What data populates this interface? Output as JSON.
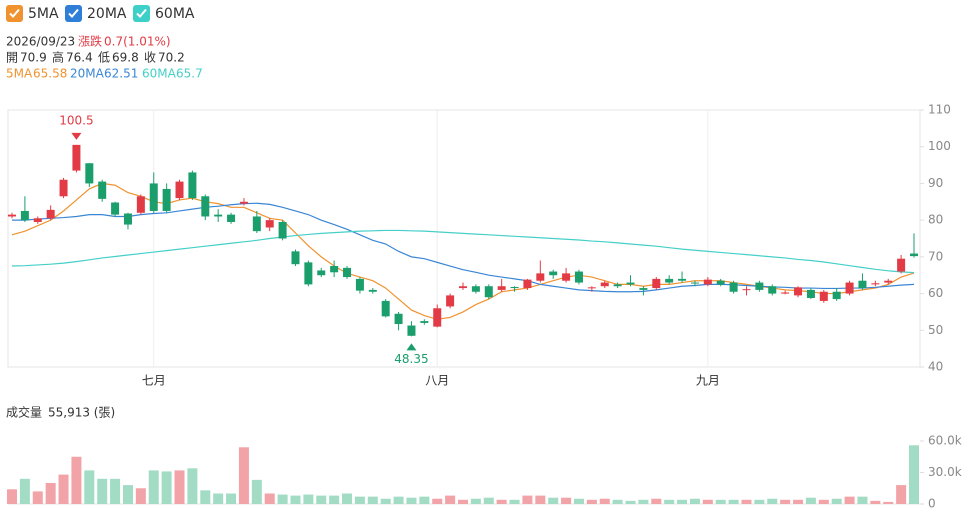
{
  "info": {
    "date": "2026/09/23",
    "change_label": "漲跌",
    "change": "0.7(1.01%)",
    "ohlc_labels": [
      "開",
      "高",
      "低",
      "收"
    ]
  },
  "chart_data": [
    {
      "type": "candlestick",
      "up_color": "#e23b45",
      "down_color": "#1a9e6c",
      "grid": true,
      "annotate_extremes": true,
      "categories": [
        null,
        null,
        null,
        null,
        null,
        null,
        null,
        null,
        null,
        null,
        null,
        "七月",
        null,
        null,
        null,
        null,
        null,
        null,
        null,
        null,
        null,
        null,
        null,
        null,
        null,
        null,
        null,
        null,
        null,
        null,
        null,
        null,
        null,
        "八月",
        null,
        null,
        null,
        null,
        null,
        null,
        null,
        null,
        null,
        null,
        null,
        null,
        null,
        null,
        null,
        null,
        null,
        null,
        null,
        null,
        "九月",
        null,
        null,
        null,
        null,
        null,
        null,
        null,
        null,
        null,
        null,
        null,
        null,
        null,
        null,
        null,
        null
      ],
      "open": [
        81,
        82.5,
        79.5,
        80.5,
        86.5,
        93.5,
        95.5,
        90.5,
        84.8,
        81.8,
        82,
        90,
        88.5,
        86,
        93,
        86.5,
        81.5,
        81.5,
        84.5,
        81,
        78,
        79.5,
        71.5,
        68.5,
        66.3,
        67.5,
        67,
        64,
        61,
        58,
        54.5,
        51.3,
        52.5,
        51,
        56.5,
        61.5,
        62,
        62,
        61,
        61.8,
        61.5,
        63.5,
        66,
        63.5,
        66,
        61.5,
        62,
        62.5,
        63,
        61.5,
        61.5,
        64,
        64,
        63,
        62.5,
        63.5,
        63,
        61,
        63,
        62,
        60,
        59.5,
        61,
        58,
        60.5,
        60,
        63.5,
        62.5,
        63,
        66,
        70.9
      ],
      "high": [
        82,
        86.5,
        81,
        84,
        91.5,
        100.5,
        95.5,
        91,
        85,
        82,
        87,
        93,
        90,
        91,
        93.5,
        87,
        83,
        82,
        86,
        82.5,
        80.5,
        80,
        72,
        69,
        67,
        69,
        67.5,
        64.5,
        61.5,
        58.5,
        55,
        52.5,
        53,
        57,
        60,
        63,
        62.5,
        62.5,
        64,
        62,
        64,
        69,
        66.5,
        67,
        66.5,
        62,
        63.5,
        63,
        65,
        62,
        64.5,
        65,
        66,
        63.5,
        64.5,
        64,
        63.5,
        62,
        63.5,
        62.5,
        60.8,
        62,
        61.5,
        61,
        61.5,
        63.5,
        65.5,
        63.5,
        64,
        70.5,
        76.4
      ],
      "low": [
        80.5,
        79.5,
        79,
        80,
        86,
        93,
        89,
        85,
        81,
        77.5,
        81.5,
        82,
        82,
        85.5,
        85.5,
        80,
        79.5,
        79,
        84,
        76.5,
        77,
        74.5,
        67.5,
        62,
        64.5,
        64.5,
        64,
        60,
        60,
        53.5,
        50,
        48.35,
        51.5,
        50.8,
        56,
        61,
        60,
        58.5,
        60.5,
        60.5,
        61,
        63,
        64,
        63,
        62.5,
        60.5,
        61.5,
        61.5,
        62,
        59.5,
        61,
        62.5,
        63,
        62,
        62,
        62,
        60,
        59.5,
        60.5,
        59.5,
        59.8,
        59,
        58.5,
        57.5,
        58,
        59.5,
        61,
        62,
        62.5,
        65.5,
        69.8
      ],
      "close": [
        81.5,
        80,
        80.5,
        82.8,
        91,
        100.5,
        90,
        85.8,
        81.5,
        78.8,
        86.5,
        82.5,
        82.5,
        90.5,
        86,
        81,
        81,
        79.5,
        85,
        77,
        80,
        75,
        68,
        62.5,
        65,
        65.8,
        64.5,
        60.8,
        60.5,
        53.8,
        51.7,
        48.5,
        52,
        56,
        59.5,
        62,
        60.5,
        59,
        62,
        61.5,
        63.8,
        65.5,
        65,
        65.5,
        63,
        61.7,
        63,
        62,
        62.5,
        61,
        64,
        63,
        63.5,
        62.8,
        63.8,
        62.5,
        60.5,
        61.2,
        61,
        60,
        60.3,
        61.7,
        58.8,
        60.5,
        58.5,
        63,
        61.5,
        62.8,
        63.5,
        69.5,
        70.2
      ],
      "series": [
        {
          "name": "5MA",
          "color": "#f0922f",
          "values": [
            76,
            77,
            78.5,
            80,
            82.5,
            85.5,
            88.5,
            90,
            89.5,
            87.5,
            86.5,
            85,
            84.5,
            85.5,
            86,
            85,
            84.5,
            83.5,
            83.5,
            82,
            80.5,
            80,
            76.5,
            73,
            70,
            67.5,
            65.5,
            64.5,
            63.5,
            61.5,
            58.5,
            55.5,
            54,
            53,
            53.5,
            55,
            57,
            58.5,
            60.5,
            61,
            61.5,
            62.5,
            63.5,
            64.5,
            65,
            64.5,
            63.5,
            62.5,
            62.5,
            62,
            62.5,
            62.5,
            63,
            63.5,
            63.5,
            63.5,
            63,
            62.5,
            62,
            61.5,
            61,
            60.8,
            60.5,
            60,
            60,
            60.5,
            61,
            61.5,
            62.5,
            64.5,
            65.58
          ]
        },
        {
          "name": "20MA",
          "color": "#3a86d6",
          "values": [
            80,
            80,
            80.3,
            80.5,
            80.7,
            81,
            81.5,
            81.5,
            81,
            81,
            81.5,
            81.8,
            82,
            82.5,
            83,
            83.5,
            83.8,
            84.2,
            84.5,
            84.6,
            84.3,
            83.5,
            82.5,
            81.5,
            80,
            78.8,
            77.5,
            76,
            74.5,
            73.5,
            71.5,
            70,
            69.5,
            68.5,
            67.5,
            66.5,
            65.8,
            65,
            64.5,
            64,
            63.5,
            62.5,
            62,
            61.5,
            61,
            60.8,
            60.6,
            60.5,
            60.5,
            60.6,
            61,
            61.5,
            62,
            62.2,
            62.5,
            62.5,
            62.4,
            62.2,
            62,
            61.8,
            61.7,
            61.5,
            61.5,
            61.4,
            61.4,
            61.5,
            61.5,
            61.7,
            62,
            62.3,
            62.51
          ]
        },
        {
          "name": "60MA",
          "color": "#45cfc8",
          "values": [
            67.5,
            67.6,
            67.8,
            68,
            68.3,
            68.7,
            69.2,
            69.7,
            70.1,
            70.5,
            70.9,
            71.3,
            71.7,
            72.1,
            72.5,
            72.9,
            73.3,
            73.7,
            74.1,
            74.5,
            75,
            75.4,
            75.8,
            76.1,
            76.4,
            76.6,
            76.8,
            77,
            77.1,
            77.2,
            77.2,
            77.1,
            77,
            76.8,
            76.6,
            76.4,
            76.2,
            76,
            75.8,
            75.6,
            75.4,
            75.2,
            75,
            74.8,
            74.6,
            74.3,
            74.1,
            73.8,
            73.5,
            73.2,
            72.9,
            72.5,
            72.1,
            71.8,
            71.5,
            71.2,
            70.9,
            70.6,
            70.3,
            70,
            69.7,
            69.3,
            69,
            68.6,
            68.1,
            67.6,
            67.1,
            66.6,
            66.2,
            65.9,
            65.7
          ]
        }
      ],
      "ylim": [
        40,
        110
      ],
      "yticks": [
        40,
        50,
        60,
        70,
        80,
        90,
        100,
        110
      ]
    },
    {
      "type": "bar",
      "title": "成交量",
      "current_label": "55,913 (張)",
      "values": [
        14,
        24,
        12,
        20,
        28,
        45,
        32,
        24,
        24,
        18,
        15,
        32,
        31,
        32,
        34,
        13,
        10,
        10,
        54,
        23,
        10,
        9,
        8,
        9,
        8,
        8,
        10,
        7,
        7,
        5,
        7,
        6,
        7,
        5,
        8,
        4,
        5,
        6,
        4,
        4,
        8,
        8,
        6,
        6,
        5,
        4,
        5,
        4,
        3,
        4,
        5,
        4,
        4,
        5,
        4,
        4,
        4,
        4,
        4,
        5,
        4,
        4,
        6,
        4,
        5,
        7,
        7,
        3,
        2,
        18,
        55.913
      ],
      "ylim": [
        0,
        60
      ],
      "yticks": [
        0,
        {
          "value": 30,
          "label": "30.0k"
        },
        {
          "value": 60,
          "label": "60.0k"
        }
      ]
    }
  ]
}
